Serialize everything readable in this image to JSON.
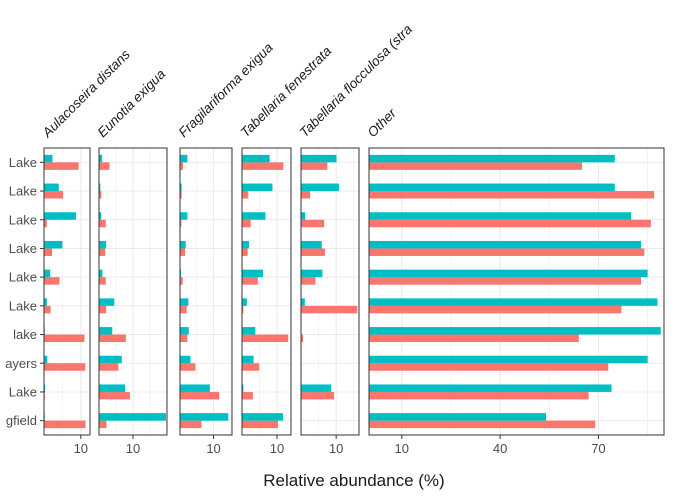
{
  "chart_data": {
    "type": "bar",
    "orientation": "horizontal",
    "faceted": true,
    "xlabel": "Relative abundance (%)",
    "rows": [
      "Lake",
      "Lake",
      "Lake",
      "Lake",
      "Lake",
      "Lake",
      "lake",
      "ayers",
      "Lake",
      "gfield"
    ],
    "series_colors": [
      "#F8766D",
      "#00BFC4"
    ],
    "facets": [
      {
        "label": "Aulacoseira distans",
        "xlim": [
          0,
          12.5
        ],
        "ticks": [
          10
        ],
        "series": [
          {
            "color": "#F8766D",
            "values": [
              9.4,
              5.2,
              0.8,
              2.2,
              4.2,
              1.8,
              11.0,
              11.2,
              0.2,
              11.3
            ]
          },
          {
            "color": "#00BFC4",
            "values": [
              2.3,
              4.0,
              8.7,
              5.0,
              1.7,
              0.8,
              0.2,
              0.9,
              0.3,
              0.2
            ]
          }
        ]
      },
      {
        "label": "Eunotia exigua",
        "xlim": [
          0,
          20
        ],
        "ticks": [
          10
        ],
        "series": [
          {
            "color": "#F8766D",
            "values": [
              3.1,
              0.7,
              2.0,
              1.8,
              2.0,
              2.1,
              7.9,
              5.7,
              9.1,
              2.2
            ]
          },
          {
            "color": "#00BFC4",
            "values": [
              0.9,
              0.4,
              0.6,
              2.1,
              1.0,
              4.5,
              3.9,
              6.7,
              7.7,
              19.7
            ]
          }
        ]
      },
      {
        "label": "Fragilariforma exigua",
        "xlim": [
          0,
          15.5
        ],
        "ticks": [
          10
        ],
        "series": [
          {
            "color": "#F8766D",
            "values": [
              0.9,
              0.5,
              0.4,
              1.5,
              0.8,
              2.0,
              2.2,
              4.6,
              11.7,
              6.4
            ]
          },
          {
            "color": "#00BFC4",
            "values": [
              2.2,
              0.5,
              2.2,
              1.7,
              0.3,
              2.5,
              2.6,
              3.1,
              8.9,
              14.4
            ]
          }
        ]
      },
      {
        "label": "Tabellaria fenestrata",
        "xlim": [
          0,
          14
        ],
        "ticks": [
          10
        ],
        "series": [
          {
            "color": "#F8766D",
            "values": [
              11.8,
              1.8,
              2.5,
              1.6,
              4.5,
              0.4,
              13.2,
              4.9,
              3.1,
              10.3
            ]
          },
          {
            "color": "#00BFC4",
            "values": [
              7.9,
              8.7,
              6.7,
              2.0,
              6.0,
              1.4,
              3.8,
              3.3,
              0.4,
              11.7
            ]
          }
        ]
      },
      {
        "label": "Tabellaria flocculosa (stra",
        "xlim": [
          0,
          16.5
        ],
        "ticks": [
          10
        ],
        "series": [
          {
            "color": "#F8766D",
            "values": [
              7.5,
              2.6,
              6.6,
              6.8,
              4.1,
              16.0,
              0.6,
              0.0,
              9.4,
              0.0
            ]
          },
          {
            "color": "#00BFC4",
            "values": [
              10.1,
              10.8,
              1.2,
              5.9,
              6.1,
              1.1,
              0.0,
              0.0,
              8.6,
              0.0
            ]
          }
        ]
      },
      {
        "label": "Other",
        "xlim": [
          0,
          90
        ],
        "ticks": [
          10,
          40,
          70
        ],
        "series": [
          {
            "color": "#F8766D",
            "values": [
              65,
              87,
              86,
              84,
              83,
              77,
              64,
              73,
              67,
              69
            ]
          },
          {
            "color": "#00BFC4",
            "values": [
              75,
              75,
              80,
              83,
              85,
              88,
              89,
              85,
              74,
              54
            ]
          }
        ]
      }
    ]
  }
}
